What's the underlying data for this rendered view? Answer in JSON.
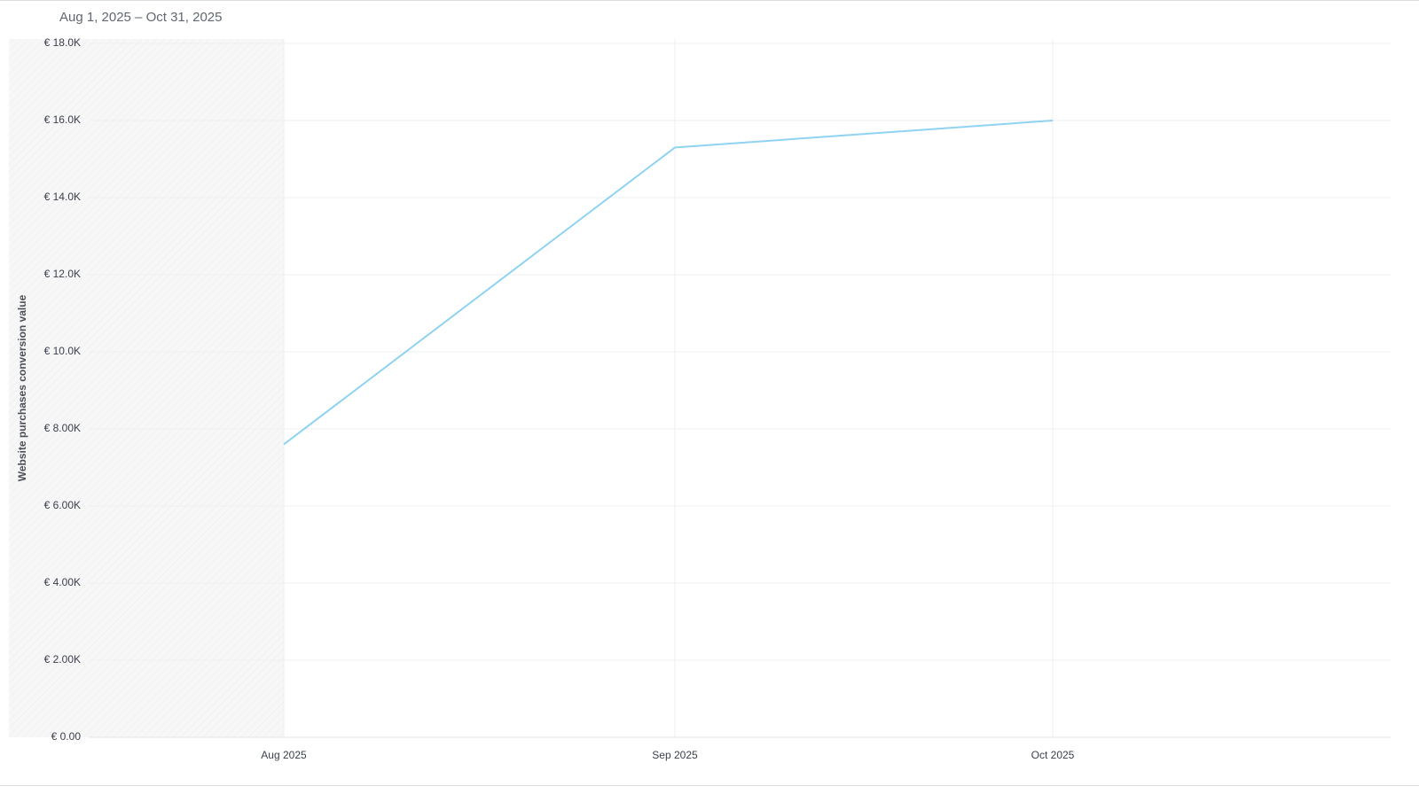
{
  "chart_data": {
    "type": "line",
    "subtitle": "Aug 1, 2025 – Oct 31, 2025",
    "y_label": "Website purchases conversion value",
    "categories": [
      "Aug 2025",
      "Sep 2025",
      "Oct 2025"
    ],
    "series": [
      {
        "name": "Website purchases conversion value",
        "color": "#8fd3f2",
        "values": [
          7600,
          15300,
          16000
        ]
      }
    ],
    "ylim": [
      0,
      18000
    ],
    "yticks": [
      {
        "value": 0,
        "label": "€ 0.00"
      },
      {
        "value": 2000,
        "label": "€ 2.00K"
      },
      {
        "value": 4000,
        "label": "€ 4.00K"
      },
      {
        "value": 6000,
        "label": "€ 6.00K"
      },
      {
        "value": 8000,
        "label": "€ 8.00K"
      },
      {
        "value": 10000,
        "label": "€ 10.0K"
      },
      {
        "value": 12000,
        "label": "€ 12.0K"
      },
      {
        "value": 14000,
        "label": "€ 14.0K"
      },
      {
        "value": 16000,
        "label": "€ 16.0K"
      },
      {
        "value": 18000,
        "label": "€ 18.0K"
      }
    ],
    "grid": true
  }
}
